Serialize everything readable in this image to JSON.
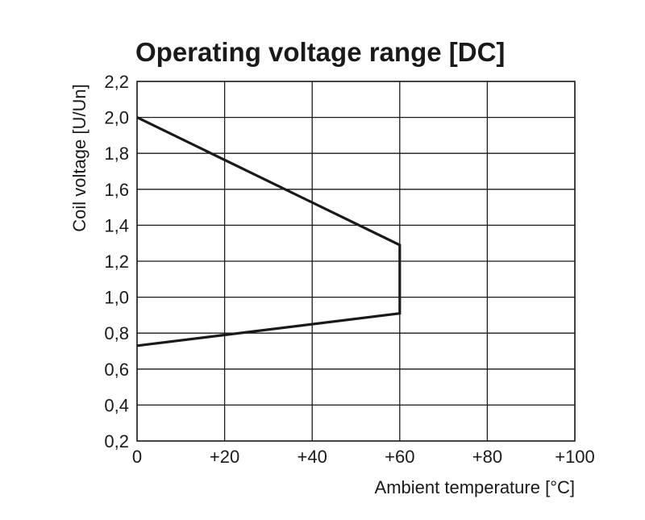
{
  "chart_data": {
    "type": "line",
    "title": "Operating voltage range [DC]",
    "xlabel": "Ambient temperature [°C]",
    "ylabel": "Coil voltage [U/Un]",
    "xlim": [
      0,
      100
    ],
    "ylim": [
      0.2,
      2.2
    ],
    "x_ticks": [
      {
        "value": 0,
        "label": "0"
      },
      {
        "value": 20,
        "label": "+20"
      },
      {
        "value": 40,
        "label": "+40"
      },
      {
        "value": 60,
        "label": "+60"
      },
      {
        "value": 80,
        "label": "+80"
      },
      {
        "value": 100,
        "label": "+100"
      }
    ],
    "y_ticks": [
      {
        "value": 0.2,
        "label": "0,2"
      },
      {
        "value": 0.4,
        "label": "0,4"
      },
      {
        "value": 0.6,
        "label": "0,6"
      },
      {
        "value": 0.8,
        "label": "0,8"
      },
      {
        "value": 1.0,
        "label": "1,0"
      },
      {
        "value": 1.2,
        "label": "1,2"
      },
      {
        "value": 1.4,
        "label": "1,4"
      },
      {
        "value": 1.6,
        "label": "1,6"
      },
      {
        "value": 1.8,
        "label": "1,8"
      },
      {
        "value": 2.0,
        "label": "2,0"
      },
      {
        "value": 2.2,
        "label": "2,2"
      }
    ],
    "grid": true,
    "series": [
      {
        "points": [
          {
            "x": 0,
            "y": 2.0
          },
          {
            "x": 60,
            "y": 1.29
          },
          {
            "x": 60,
            "y": 0.91
          },
          {
            "x": 0,
            "y": 0.73
          }
        ]
      }
    ],
    "colors": {
      "line": "#1a1a1a",
      "grid": "#1a1a1a",
      "background": "#ffffff"
    }
  }
}
